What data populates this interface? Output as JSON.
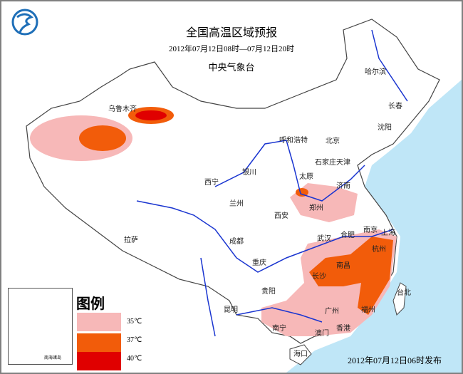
{
  "header": {
    "title": "全国高温区域预报",
    "period": "2012年07月12日08时—07月12日20时",
    "issuer": "中央气象台"
  },
  "logo": {
    "name": "cma-logo-icon",
    "color": "#1e6fb8"
  },
  "legend": {
    "title": "图例",
    "items": [
      {
        "label": "35℃",
        "color": "#f7b8b8"
      },
      {
        "label": "37℃",
        "color": "#f25c0a"
      },
      {
        "label": "40℃",
        "color": "#e00000"
      }
    ]
  },
  "inset": {
    "label": "南海诸岛"
  },
  "issued": "2012年07月12日06时发布",
  "colors": {
    "sea": "#bfe6f7",
    "river": "#1a35d0",
    "border": "#444444"
  },
  "cities": [
    {
      "name": "乌鲁木齐"
    },
    {
      "name": "哈尔滨"
    },
    {
      "name": "长春"
    },
    {
      "name": "沈阳"
    },
    {
      "name": "呼和浩特"
    },
    {
      "name": "北京"
    },
    {
      "name": "天津"
    },
    {
      "name": "石家庄"
    },
    {
      "name": "太原"
    },
    {
      "name": "济南"
    },
    {
      "name": "银川"
    },
    {
      "name": "西宁"
    },
    {
      "name": "兰州"
    },
    {
      "name": "西安"
    },
    {
      "name": "郑州"
    },
    {
      "name": "拉萨"
    },
    {
      "name": "成都"
    },
    {
      "name": "重庆"
    },
    {
      "name": "武汉"
    },
    {
      "name": "合肥"
    },
    {
      "name": "南京"
    },
    {
      "name": "上海"
    },
    {
      "name": "杭州"
    },
    {
      "name": "南昌"
    },
    {
      "name": "长沙"
    },
    {
      "name": "贵阳"
    },
    {
      "name": "昆明"
    },
    {
      "name": "福州"
    },
    {
      "name": "台北"
    },
    {
      "name": "广州"
    },
    {
      "name": "南宁"
    },
    {
      "name": "澳门"
    },
    {
      "name": "香港"
    },
    {
      "name": "海口"
    }
  ]
}
